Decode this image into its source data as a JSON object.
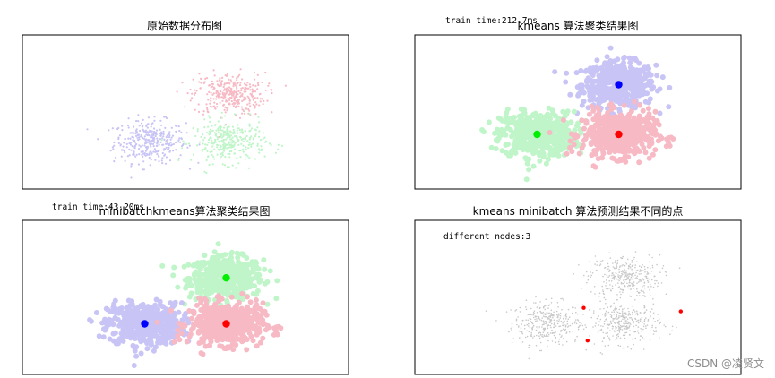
{
  "chart_data": [
    {
      "type": "scatter",
      "title": "原始数据分布图",
      "xlim": [
        -4.2,
        4.0
      ],
      "ylim": [
        -3.0,
        3.5
      ],
      "marker": "small",
      "series": [
        {
          "center": [
            -1.0,
            -1.0
          ],
          "color": "#c8c4f5"
        },
        {
          "center": [
            1.0,
            1.0
          ],
          "color": "#f7b9c4"
        },
        {
          "center": [
            1.0,
            -1.0
          ],
          "color": "#bff5c8"
        }
      ]
    },
    {
      "type": "scatter",
      "title": "kmeans 算法聚类结果图",
      "annotation": "train time:212.7ms",
      "xlim": [
        -4.0,
        4.0
      ],
      "ylim": [
        -3.2,
        3.0
      ],
      "marker": "large",
      "series": [
        {
          "center": [
            1.0,
            1.0
          ],
          "color": "#c8c4f5",
          "centroid_color": "#0000ff"
        },
        {
          "center": [
            -1.0,
            -1.0
          ],
          "color": "#bff5c8",
          "centroid_color": "#00ee00"
        },
        {
          "center": [
            1.0,
            -1.0
          ],
          "color": "#f7b9c4",
          "centroid_color": "#ff0000"
        }
      ]
    },
    {
      "type": "scatter",
      "title": "minibatchkmeans算法聚类结果图",
      "annotation": "train time:43.20ms",
      "xlim": [
        -4.0,
        4.0
      ],
      "ylim": [
        -3.2,
        3.5
      ],
      "marker": "large",
      "series": [
        {
          "center": [
            1.0,
            1.0
          ],
          "color": "#bff5c8",
          "centroid_color": "#00ee00"
        },
        {
          "center": [
            -1.0,
            -1.0
          ],
          "color": "#c8c4f5",
          "centroid_color": "#0000ff"
        },
        {
          "center": [
            1.0,
            -1.0
          ],
          "color": "#f7b9c4",
          "centroid_color": "#ff0000"
        }
      ]
    },
    {
      "type": "scatter",
      "title": "kmeans minibatch 算法预测结果不同的点",
      "annotation": "different nodes:3",
      "xlim": [
        -4.4,
        4.0
      ],
      "ylim": [
        -3.2,
        3.4
      ],
      "marker": "tiny",
      "series": [
        {
          "center": [
            -1.0,
            -1.0
          ],
          "color": "#c8c8c8"
        },
        {
          "center": [
            1.0,
            1.0
          ],
          "color": "#c8c8c8"
        },
        {
          "center": [
            1.0,
            -1.0
          ],
          "color": "#c8c8c8"
        }
      ],
      "highlighted_points": {
        "color": "#ff0000",
        "points": [
          [
            -0.05,
            -0.35
          ],
          [
            0.05,
            -1.75
          ],
          [
            2.45,
            -0.5
          ]
        ]
      }
    }
  ],
  "watermark": "CSDN @凌贤文"
}
